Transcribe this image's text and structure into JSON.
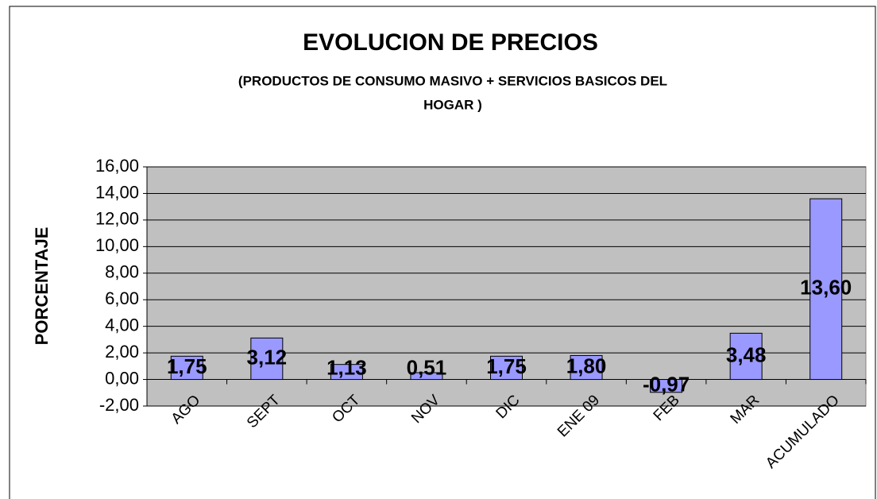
{
  "chart_data": {
    "type": "bar",
    "title": "EVOLUCION DE PRECIOS",
    "subtitle": [
      "(PRODUCTOS DE CONSUMO MASIVO  + SERVICIOS BASICOS DEL",
      "HOGAR )"
    ],
    "y_label": "PORCENTAJE",
    "categories": [
      "AGO",
      "SEPT",
      "OCT",
      "NOV",
      "DIC",
      "ENE 09",
      "FEB",
      "MAR",
      "ACUMULADO"
    ],
    "values": [
      1.75,
      3.12,
      1.13,
      0.51,
      1.75,
      1.8,
      -0.97,
      3.48,
      13.6
    ],
    "value_labels": [
      "1,75",
      "3,12",
      "1,13",
      "0,51",
      "1,75",
      "1,80",
      "-0,97",
      "3,48",
      "13,60"
    ],
    "color": "#9999ff",
    "ylim": [
      -2,
      16
    ],
    "yticks": [
      {
        "value": -2,
        "label": "-2,00"
      },
      {
        "value": 0,
        "label": "0,00"
      },
      {
        "value": 2,
        "label": "2,00"
      },
      {
        "value": 4,
        "label": "4,00"
      },
      {
        "value": 6,
        "label": "6,00"
      },
      {
        "value": 8,
        "label": "8,00"
      },
      {
        "value": 10,
        "label": "10,00"
      },
      {
        "value": 12,
        "label": "12,00"
      },
      {
        "value": 14,
        "label": "14,00"
      },
      {
        "value": 16,
        "label": "16,00"
      }
    ],
    "grid": true
  }
}
